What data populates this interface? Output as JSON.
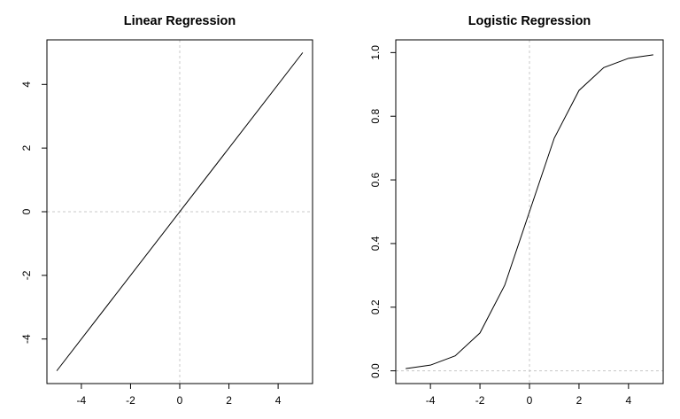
{
  "chart_data": [
    {
      "type": "line",
      "title": "Linear Regression",
      "xlabel": "",
      "ylabel": "",
      "xlim": [
        -5.4,
        5.4
      ],
      "ylim": [
        -5.4,
        5.4
      ],
      "x_ticks": [
        -4,
        -2,
        0,
        2,
        4
      ],
      "y_ticks": [
        -4,
        -2,
        0,
        2,
        4
      ],
      "x_tick_labels": [
        "-4",
        "-2",
        "0",
        "2",
        "4"
      ],
      "y_tick_labels": [
        "-4",
        "-2",
        "0",
        "2",
        "4"
      ],
      "reference_lines": {
        "vertical_x": 0,
        "horizontal_y": 0,
        "style": "dashed",
        "color": "#c8c8c8"
      },
      "grid": false,
      "series": [
        {
          "x": [
            -5,
            5
          ],
          "y": [
            -5,
            5
          ],
          "color": "#000000"
        }
      ]
    },
    {
      "type": "line",
      "title": "Logistic Regression",
      "xlabel": "",
      "ylabel": "",
      "xlim": [
        -5.4,
        5.4
      ],
      "ylim": [
        -0.04,
        1.04
      ],
      "x_ticks": [
        -4,
        -2,
        0,
        2,
        4
      ],
      "y_ticks": [
        0.0,
        0.2,
        0.4,
        0.6,
        0.8,
        1.0
      ],
      "x_tick_labels": [
        "-4",
        "-2",
        "0",
        "2",
        "4"
      ],
      "y_tick_labels": [
        "0.0",
        "0.2",
        "0.4",
        "0.6",
        "0.8",
        "1.0"
      ],
      "reference_lines": {
        "vertical_x": 0,
        "horizontal_y": 0,
        "style": "dashed",
        "color": "#c8c8c8"
      },
      "grid": false,
      "series": [
        {
          "x": [
            -5,
            -4,
            -3,
            -2,
            -1,
            0,
            1,
            2,
            3,
            4,
            5
          ],
          "y": [
            0.007,
            0.018,
            0.047,
            0.119,
            0.269,
            0.5,
            0.731,
            0.881,
            0.953,
            0.982,
            0.993
          ],
          "color": "#000000"
        }
      ]
    }
  ]
}
